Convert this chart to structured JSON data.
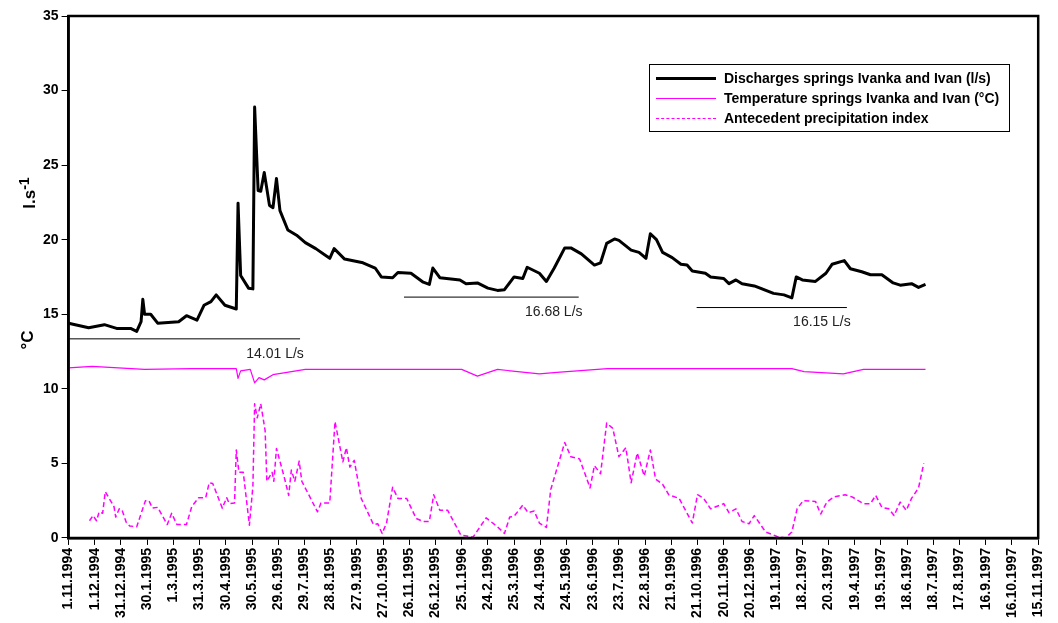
{
  "chart_data": {
    "type": "line",
    "ylabel": "l.s$^{-1}$",
    "xlim": [
      "1994-11-01",
      "1997-11-15"
    ],
    "xticks": [
      {
        "value": "1994-11-01",
        "label": "1.11.1994"
      },
      {
        "value": "1994-12-01",
        "label": "1.12.1994"
      },
      {
        "value": "1994-12-31",
        "label": "31.12.1994"
      },
      {
        "value": "1995-01-30",
        "label": "30.1.1995"
      },
      {
        "value": "1995-03-01",
        "label": "1.3.1995"
      },
      {
        "value": "1995-03-31",
        "label": "31.3.1995"
      },
      {
        "value": "1995-04-30",
        "label": "30.4.1995"
      },
      {
        "value": "1995-05-30",
        "label": "30.5.1995"
      },
      {
        "value": "1995-06-29",
        "label": "29.6.1995"
      },
      {
        "value": "1995-07-29",
        "label": "29.7.1995"
      },
      {
        "value": "1995-08-28",
        "label": "28.8.1995"
      },
      {
        "value": "1995-09-27",
        "label": "27.9.1995"
      },
      {
        "value": "1995-10-27",
        "label": "27.10.1995"
      },
      {
        "value": "1995-11-26",
        "label": "26.11.1995"
      },
      {
        "value": "1995-12-26",
        "label": "26.12.1995"
      },
      {
        "value": "1996-01-25",
        "label": "25.1.1996"
      },
      {
        "value": "1996-02-24",
        "label": "24.2.1996"
      },
      {
        "value": "1996-03-25",
        "label": "25.3.1996"
      },
      {
        "value": "1996-04-24",
        "label": "24.4.1996"
      },
      {
        "value": "1996-05-24",
        "label": "24.5.1996"
      },
      {
        "value": "1996-06-23",
        "label": "23.6.1996"
      },
      {
        "value": "1996-07-23",
        "label": "23.7.1996"
      },
      {
        "value": "1996-08-22",
        "label": "22.8.1996"
      },
      {
        "value": "1996-09-21",
        "label": "21.9.1996"
      },
      {
        "value": "1996-10-21",
        "label": "21.10.1996"
      },
      {
        "value": "1996-11-20",
        "label": "20.11.1996"
      },
      {
        "value": "1996-12-20",
        "label": "20.12.1996"
      },
      {
        "value": "1997-01-19",
        "label": "19.1.1997"
      },
      {
        "value": "1997-02-18",
        "label": "18.2.1997"
      },
      {
        "value": "1997-03-20",
        "label": "20.3.1997"
      },
      {
        "value": "1997-04-19",
        "label": "19.4.1997"
      },
      {
        "value": "1997-05-19",
        "label": "19.5.1997"
      },
      {
        "value": "1997-06-18",
        "label": "18.6.1997"
      },
      {
        "value": "1997-07-18",
        "label": "18.7.1997"
      },
      {
        "value": "1997-08-17",
        "label": "17.8.1997"
      },
      {
        "value": "1997-09-16",
        "label": "16.9.1997"
      },
      {
        "value": "1997-10-16",
        "label": "16.10.1997"
      },
      {
        "value": "1997-11-15",
        "label": "15.11.1997"
      }
    ],
    "ylim": [
      0,
      35
    ],
    "yticks": [
      0,
      5,
      10,
      15,
      20,
      25,
      30,
      35
    ],
    "grid": false,
    "legend": "top right",
    "marker": "none",
    "series": [
      {
        "name": "Discharges springs Ivanka and Ivan (l/s)",
        "color": "#000000",
        "line_style": "solid",
        "x": [
          "1994-11-01",
          "1994-11-24",
          "1994-12-12",
          "1994-12-26",
          "1995-01-11",
          "1995-01-18",
          "1995-01-23",
          "1995-01-25",
          "1995-01-27",
          "1995-02-03",
          "1995-02-11",
          "1995-03-07",
          "1995-03-16",
          "1995-03-28",
          "1995-04-05",
          "1995-04-13",
          "1995-04-19",
          "1995-04-29",
          "1995-05-12",
          "1995-05-14",
          "1995-05-17",
          "1995-05-26",
          "1995-05-31",
          "1995-06-02",
          "1995-06-06",
          "1995-06-09",
          "1995-06-13",
          "1995-06-19",
          "1995-06-23",
          "1995-06-27",
          "1995-07-01",
          "1995-07-10",
          "1995-07-20",
          "1995-07-30",
          "1995-08-11",
          "1995-08-27",
          "1995-09-01",
          "1995-09-13",
          "1995-10-04",
          "1995-10-18",
          "1995-10-25",
          "1995-11-07",
          "1995-11-13",
          "1995-11-28",
          "1995-12-12",
          "1995-12-19",
          "1995-12-23",
          "1995-12-31",
          "1996-01-23",
          "1996-01-30",
          "1996-02-12",
          "1996-02-24",
          "1996-03-06",
          "1996-03-14",
          "1996-03-25",
          "1996-04-04",
          "1996-04-09",
          "1996-04-23",
          "1996-05-01",
          "1996-05-10",
          "1996-05-22",
          "1996-05-29",
          "1996-06-10",
          "1996-06-25",
          "1996-07-02",
          "1996-07-09",
          "1996-07-18",
          "1996-07-23",
          "1996-08-06",
          "1996-08-15",
          "1996-08-23",
          "1996-08-28",
          "1996-09-04",
          "1996-09-11",
          "1996-09-22",
          "1996-10-02",
          "1996-10-09",
          "1996-10-15",
          "1996-10-30",
          "1996-11-05",
          "1996-11-20",
          "1996-11-26",
          "1996-12-04",
          "1996-12-11",
          "1996-12-25",
          "1997-01-16",
          "1997-01-28",
          "1997-02-06",
          "1997-02-11",
          "1997-02-18",
          "1997-03-05",
          "1997-03-17",
          "1997-03-24",
          "1997-04-07",
          "1997-04-14",
          "1997-04-27",
          "1997-05-07",
          "1997-05-20",
          "1997-06-02",
          "1997-06-10",
          "1997-06-23",
          "1997-07-01",
          "1997-07-09"
        ],
        "values": [
          14.4,
          14.1,
          14.3,
          14.05,
          14.05,
          13.85,
          14.5,
          16.0,
          15.0,
          15.0,
          14.4,
          14.5,
          14.9,
          14.6,
          15.6,
          15.85,
          16.3,
          15.6,
          15.35,
          22.45,
          17.6,
          16.75,
          16.7,
          28.9,
          23.3,
          23.25,
          24.5,
          22.3,
          22.15,
          24.1,
          21.95,
          20.65,
          20.3,
          19.8,
          19.4,
          18.75,
          19.4,
          18.7,
          18.45,
          18.1,
          17.5,
          17.45,
          17.8,
          17.75,
          17.15,
          17.0,
          18.1,
          17.45,
          17.3,
          17.05,
          17.1,
          16.75,
          16.6,
          16.65,
          17.5,
          17.4,
          18.15,
          17.75,
          17.2,
          18.1,
          19.45,
          19.45,
          19.05,
          18.3,
          18.45,
          19.75,
          20.05,
          19.95,
          19.3,
          19.15,
          18.75,
          20.4,
          20.0,
          19.15,
          18.8,
          18.35,
          18.3,
          17.9,
          17.75,
          17.5,
          17.4,
          17.05,
          17.3,
          17.05,
          16.9,
          16.4,
          16.3,
          16.1,
          17.5,
          17.3,
          17.2,
          17.75,
          18.35,
          18.6,
          18.05,
          17.85,
          17.65,
          17.65,
          17.1,
          16.95,
          17.05,
          16.8,
          17.0
        ]
      },
      {
        "name": "Temperature springs Ivanka and Ivan (°C)",
        "color": "#ff00ff",
        "line_style": "solid",
        "x": [
          "1994-11-01",
          "1994-11-28",
          "1995-01-27",
          "1995-03-22",
          "1995-05-12",
          "1995-05-14",
          "1995-05-17",
          "1995-05-28",
          "1995-06-02",
          "1995-06-07",
          "1995-06-13",
          "1995-06-23",
          "1995-07-09",
          "1995-07-30",
          "1995-09-13",
          "1995-12-29",
          "1996-01-25",
          "1996-02-12",
          "1996-03-06",
          "1996-04-23",
          "1996-05-13",
          "1996-07-10",
          "1996-10-11",
          "1997-02-06",
          "1997-02-20",
          "1997-04-06",
          "1997-04-29",
          "1997-07-09"
        ],
        "values": [
          11.4,
          11.5,
          11.3,
          11.35,
          11.35,
          10.7,
          11.2,
          11.3,
          10.4,
          10.75,
          10.6,
          10.95,
          11.1,
          11.3,
          11.3,
          11.3,
          11.3,
          10.85,
          11.3,
          11.0,
          11.1,
          11.35,
          11.35,
          11.35,
          11.15,
          11.0,
          11.3,
          11.3
        ]
      },
      {
        "name": "Antecedent  precipitation index",
        "color": "#ff00ff",
        "line_style": "dashed",
        "x": [
          "1994-11-25",
          "1994-11-29",
          "1994-12-03",
          "1994-12-06",
          "1994-12-10",
          "1994-12-13",
          "1994-12-23",
          "1994-12-25",
          "1994-12-29",
          "1995-01-01",
          "1995-01-06",
          "1995-01-10",
          "1995-01-18",
          "1995-01-28",
          "1995-02-01",
          "1995-02-05",
          "1995-02-11",
          "1995-02-22",
          "1995-02-27",
          "1995-03-05",
          "1995-03-16",
          "1995-03-22",
          "1995-03-30",
          "1995-04-07",
          "1995-04-11",
          "1995-04-15",
          "1995-04-26",
          "1995-05-01",
          "1995-05-04",
          "1995-05-10",
          "1995-05-12",
          "1995-05-15",
          "1995-05-20",
          "1995-05-27",
          "1995-05-31",
          "1995-06-02",
          "1995-06-05",
          "1995-06-09",
          "1995-06-14",
          "1995-06-16",
          "1995-06-22",
          "1995-06-24",
          "1995-06-27",
          "1995-07-06",
          "1995-07-11",
          "1995-07-14",
          "1995-07-18",
          "1995-07-23",
          "1995-07-26",
          "1995-08-13",
          "1995-08-17",
          "1995-08-27",
          "1995-09-02",
          "1995-09-11",
          "1995-09-15",
          "1995-09-19",
          "1995-09-24",
          "1995-10-02",
          "1995-10-16",
          "1995-10-21",
          "1995-10-26",
          "1995-10-31",
          "1995-11-07",
          "1995-11-13",
          "1995-11-23",
          "1995-12-04",
          "1995-12-12",
          "1995-12-19",
          "1995-12-24",
          "1995-12-31",
          "1996-01-09",
          "1996-01-24",
          "1996-02-07",
          "1996-02-14",
          "1996-02-22",
          "1996-03-06",
          "1996-03-14",
          "1996-03-20",
          "1996-03-25",
          "1996-04-04",
          "1996-04-10",
          "1996-04-17",
          "1996-04-23",
          "1996-05-01",
          "1996-05-06",
          "1996-05-22",
          "1996-05-29",
          "1996-06-08",
          "1996-06-20",
          "1996-06-25",
          "1996-07-02",
          "1996-07-09",
          "1996-07-16",
          "1996-07-23",
          "1996-07-31",
          "1996-08-06",
          "1996-08-13",
          "1996-08-21",
          "1996-08-28",
          "1996-09-03",
          "1996-09-11",
          "1996-09-18",
          "1996-09-30",
          "1996-10-15",
          "1996-10-21",
          "1996-10-28",
          "1996-11-05",
          "1996-11-20",
          "1996-11-26",
          "1996-12-04",
          "1996-12-11",
          "1996-12-19",
          "1996-12-25",
          "1997-01-07",
          "1997-01-20",
          "1997-01-30",
          "1997-02-06",
          "1997-02-12",
          "1997-02-19",
          "1997-03-05",
          "1997-03-11",
          "1997-03-18",
          "1997-03-26",
          "1997-04-08",
          "1997-04-16",
          "1997-04-29",
          "1997-05-07",
          "1997-05-13",
          "1997-05-20",
          "1997-05-28",
          "1997-06-03",
          "1997-06-10",
          "1997-06-17",
          "1997-06-23",
          "1997-07-01",
          "1997-07-07"
        ],
        "values": [
          1.15,
          1.5,
          1.15,
          1.75,
          1.65,
          3.1,
          2.1,
          1.4,
          1.95,
          1.9,
          1.05,
          0.8,
          0.75,
          2.5,
          2.5,
          2.0,
          2.05,
          0.9,
          1.65,
          0.9,
          0.9,
          2.1,
          2.7,
          2.7,
          3.7,
          3.65,
          2.0,
          2.7,
          2.3,
          2.35,
          5.9,
          4.4,
          4.4,
          0.85,
          3.45,
          9.0,
          8.05,
          9.0,
          7.2,
          3.8,
          4.4,
          3.8,
          6.0,
          4.05,
          2.85,
          4.55,
          3.8,
          5.15,
          3.8,
          1.75,
          2.35,
          2.35,
          7.8,
          5.1,
          6.05,
          4.75,
          5.2,
          2.65,
          0.9,
          0.95,
          0.3,
          1.0,
          3.4,
          2.65,
          2.65,
          1.3,
          1.1,
          1.1,
          2.9,
          1.85,
          1.85,
          0.2,
          0.05,
          0.65,
          1.35,
          0.75,
          0.3,
          1.4,
          1.45,
          2.2,
          1.7,
          1.8,
          1.0,
          0.7,
          3.25,
          6.4,
          5.45,
          5.3,
          3.35,
          4.85,
          4.3,
          7.7,
          7.35,
          5.45,
          6.05,
          3.7,
          5.7,
          4.15,
          5.9,
          3.95,
          3.6,
          2.9,
          2.65,
          1.0,
          2.9,
          2.65,
          1.95,
          2.3,
          1.7,
          1.95,
          1.1,
          0.95,
          1.5,
          0.4,
          0.1,
          0.0,
          0.4,
          1.95,
          2.5,
          2.45,
          1.6,
          2.4,
          2.75,
          2.9,
          2.75,
          2.3,
          2.3,
          2.85,
          2.05,
          1.95,
          1.5,
          2.4,
          1.85,
          2.65,
          3.35,
          5.0
        ]
      },
      {
        "type": "line",
        "color": "#000000",
        "line_style": "solid",
        "x": [
          "1994-11-01",
          "1995-07-24"
        ],
        "values": [
          13.35,
          13.35
        ]
      },
      {
        "type": "line",
        "color": "#000000",
        "line_style": "solid",
        "x": [
          "1995-11-20",
          "1996-06-07"
        ],
        "values": [
          16.15,
          16.15
        ]
      },
      {
        "type": "line",
        "color": "#000000",
        "line_style": "solid",
        "x": [
          "1996-10-20",
          "1997-04-10"
        ],
        "values": [
          15.45,
          15.45
        ]
      }
    ],
    "annotations": [
      "14.01 L/s",
      "16.68 L/s",
      "16.15 L/s",
      "°C"
    ]
  }
}
